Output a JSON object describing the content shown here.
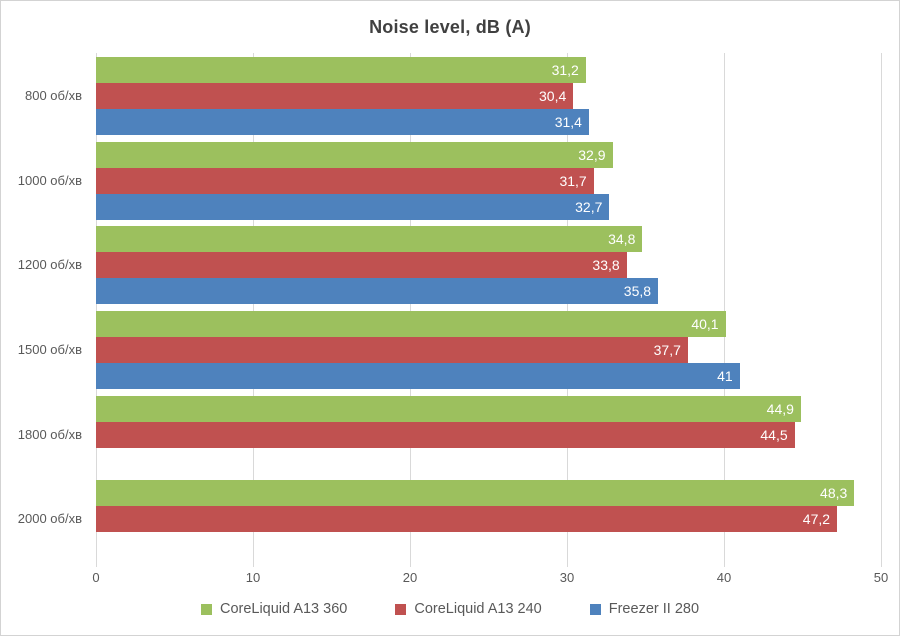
{
  "chart_data": {
    "type": "bar",
    "orientation": "horizontal",
    "title": "Noise level, dB (A)",
    "categories": [
      "800 об/хв",
      "1000 об/хв",
      "1200 об/хв",
      "1500 об/хв",
      "1800 об/хв",
      "2000 об/хв"
    ],
    "series": [
      {
        "name": "CoreLiquid A13 360",
        "color": "#9cc05e",
        "values": [
          31.2,
          32.9,
          34.8,
          40.1,
          44.9,
          48.3
        ],
        "labels": [
          "31,2",
          "32,9",
          "34,8",
          "40,1",
          "44,9",
          "48,3"
        ]
      },
      {
        "name": "CoreLiquid A13 240",
        "color": "#c05150",
        "values": [
          30.4,
          31.7,
          33.8,
          37.7,
          44.5,
          47.2
        ],
        "labels": [
          "30,4",
          "31,7",
          "33,8",
          "37,7",
          "44,5",
          "47,2"
        ]
      },
      {
        "name": "Freezer II 280",
        "color": "#4e82bd",
        "values": [
          31.4,
          32.7,
          35.8,
          41,
          null,
          null
        ],
        "labels": [
          "31,4",
          "32,7",
          "35,8",
          "41",
          null,
          null
        ]
      }
    ],
    "xlim": [
      0,
      50
    ],
    "x_ticks": [
      "0",
      "10",
      "20",
      "30",
      "40",
      "50"
    ],
    "grid": "vertical-only",
    "legend_position": "bottom",
    "colors": {
      "title_text": "#404040",
      "axis_text": "#595959",
      "gridline": "#d9d9d9",
      "chart_border": "#d3d3d3",
      "bar_label_text": "#ffffff"
    }
  }
}
